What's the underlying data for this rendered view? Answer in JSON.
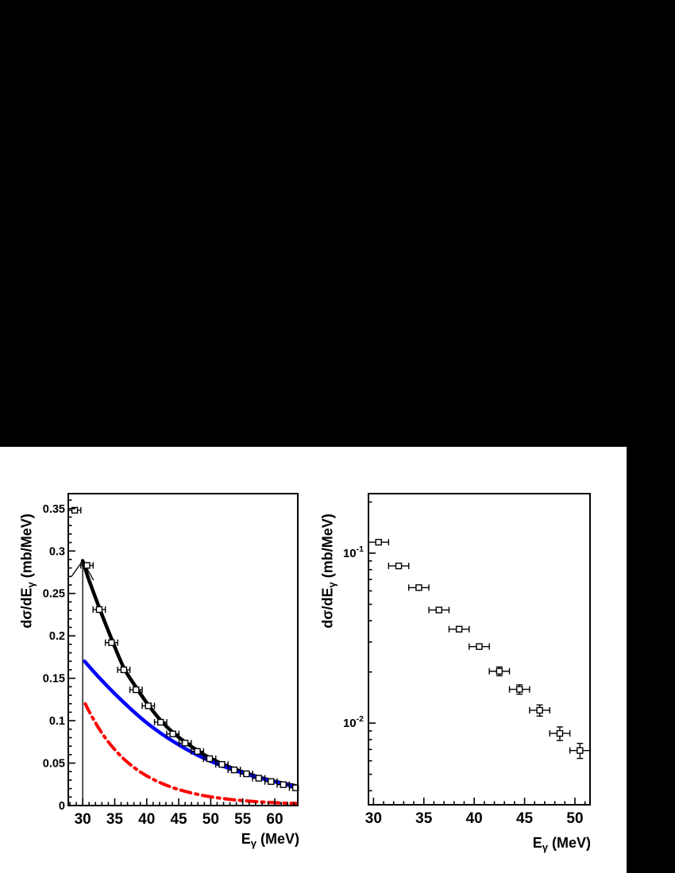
{
  "page": {
    "background": "#000000",
    "figure_background": "#ffffff",
    "accent_colors": {
      "fit_total": "#000000",
      "component_blue": "#0000ff",
      "component_red": "#ff0000"
    }
  },
  "chart_data": [
    {
      "type": "scatter",
      "yscale": "linear",
      "title": "",
      "xlabel": "E_γ (MeV)",
      "ylabel": "dσ/dE_γ (mb/MeV)",
      "xlabel_parts": {
        "main": "E",
        "sub": "γ",
        "unit": " (MeV)"
      },
      "ylabel_parts": {
        "main": "dσ/dE",
        "sub": "γ",
        "unit": " (mb/MeV)"
      },
      "xlim": [
        27.75,
        63.6
      ],
      "ylim": [
        0,
        0.3676
      ],
      "grid": false,
      "legend": "none",
      "xticks": {
        "major": [
          30,
          35,
          40,
          45,
          50,
          55,
          60
        ],
        "labels": [
          "30",
          "35",
          "40",
          "45",
          "50",
          "55",
          "60"
        ],
        "minor_step": 1
      },
      "yticks": {
        "major": [
          0,
          0.05,
          0.1,
          0.15,
          0.2,
          0.25,
          0.3,
          0.35
        ],
        "labels": [
          "0",
          "0.05",
          "0.1",
          "0.15",
          "0.2",
          "0.25",
          "0.3",
          "0.35"
        ],
        "minor_step": 0.01
      },
      "points": {
        "marker": "open-square",
        "x": [
          28.75,
          30.67,
          32.58,
          34.5,
          36.42,
          38.33,
          40.25,
          42.17,
          44.08,
          46.0,
          47.92,
          49.83,
          51.75,
          53.67,
          55.58,
          57.5,
          59.42,
          61.33,
          63.25
        ],
        "y": [
          0.348,
          0.283,
          0.231,
          0.192,
          0.16,
          0.1365,
          0.1175,
          0.0982,
          0.0844,
          0.0736,
          0.0638,
          0.0552,
          0.0485,
          0.042,
          0.0374,
          0.0322,
          0.0283,
          0.0246,
          0.0209
        ],
        "xerr": 0.96,
        "yerr": 0
      },
      "curves": [
        {
          "name": "total-fit-curve",
          "color": "#000000",
          "width": 4.5,
          "dash": null,
          "points": [
            [
              30,
              0.2885
            ],
            [
              31,
              0.2655
            ],
            [
              32.58,
              0.2335
            ],
            [
              34.5,
              0.1965
            ],
            [
              36.42,
              0.1625
            ],
            [
              38.33,
              0.1395
            ],
            [
              40.25,
              0.1185
            ],
            [
              42.17,
              0.1005
            ],
            [
              44.08,
              0.0862
            ],
            [
              46,
              0.0748
            ],
            [
              47.92,
              0.0648
            ],
            [
              49.83,
              0.0562
            ],
            [
              51.75,
              0.0492
            ],
            [
              53.67,
              0.0431
            ],
            [
              55.58,
              0.0381
            ],
            [
              57.5,
              0.0335
            ],
            [
              59.42,
              0.0296
            ],
            [
              61.33,
              0.0262
            ],
            [
              63.25,
              0.0232
            ],
            [
              63.6,
              0.0222
            ]
          ]
        },
        {
          "name": "blue-component-curve",
          "color": "#0000ff",
          "width": 4.5,
          "dash": null,
          "points": [
            [
              30.3,
              0.17
            ],
            [
              32,
              0.1555
            ],
            [
              34,
              0.1395
            ],
            [
              36,
              0.1245
            ],
            [
              38,
              0.1105
            ],
            [
              40,
              0.0975
            ],
            [
              42,
              0.0862
            ],
            [
              44,
              0.0762
            ],
            [
              46,
              0.0672
            ],
            [
              48,
              0.0592
            ],
            [
              50,
              0.0522
            ],
            [
              52,
              0.0462
            ],
            [
              54,
              0.0408
            ],
            [
              56,
              0.036
            ],
            [
              58,
              0.0318
            ],
            [
              60,
              0.0282
            ],
            [
              62,
              0.0243
            ],
            [
              63.6,
              0.0213
            ]
          ]
        },
        {
          "name": "red-component-curve",
          "color": "#ff0000",
          "width": 4,
          "dash": "13 6 3 6",
          "points": [
            [
              30.4,
              0.12
            ],
            [
              31,
              0.111
            ],
            [
              32,
              0.0975
            ],
            [
              33,
              0.0855
            ],
            [
              34,
              0.075
            ],
            [
              35,
              0.066
            ],
            [
              36,
              0.058
            ],
            [
              37,
              0.051
            ],
            [
              38,
              0.045
            ],
            [
              39,
              0.0396
            ],
            [
              40,
              0.035
            ],
            [
              41,
              0.0309
            ],
            [
              42,
              0.0273
            ],
            [
              43,
              0.0241
            ],
            [
              44,
              0.0213
            ],
            [
              45,
              0.0189
            ],
            [
              46,
              0.0167
            ],
            [
              47,
              0.0148
            ],
            [
              48,
              0.0131
            ],
            [
              49,
              0.0116
            ],
            [
              50,
              0.0103
            ],
            [
              51,
              0.0092
            ],
            [
              52,
              0.0082
            ],
            [
              53,
              0.0073
            ],
            [
              54,
              0.0065
            ],
            [
              55,
              0.0058
            ],
            [
              56,
              0.0052
            ],
            [
              57,
              0.0047
            ],
            [
              58,
              0.0042
            ],
            [
              59,
              0.0038
            ],
            [
              60,
              0.0034
            ],
            [
              61,
              0.0031
            ],
            [
              62,
              0.0028
            ],
            [
              63,
              0.0026
            ],
            [
              63.6,
              0.0025
            ]
          ]
        }
      ],
      "arrow": {
        "x": 30,
        "y_from": 0,
        "y_to": 0.2885,
        "barbs": [
          [
            28.3,
            0.2705
          ],
          [
            31.7,
            0.2655
          ]
        ]
      }
    },
    {
      "type": "scatter",
      "yscale": "log",
      "title": "",
      "xlabel": "E_γ (MeV)",
      "ylabel": "dσ/dE_γ (mb/MeV)",
      "xlabel_parts": {
        "main": "E",
        "sub": "γ",
        "unit": " (MeV)"
      },
      "ylabel_parts": {
        "main": "dσ/dE",
        "sub": "γ",
        "unit": " (mb/MeV)"
      },
      "xlim": [
        29.5,
        51.5
      ],
      "ylim": [
        0.00331,
        0.2239
      ],
      "grid": false,
      "legend": "none",
      "xticks": {
        "major": [
          30,
          35,
          40,
          45,
          50
        ],
        "labels": [
          "30",
          "35",
          "40",
          "45",
          "50"
        ],
        "minor_step": 1
      },
      "yticks_log": {
        "label_base": "10",
        "major": [
          {
            "value": 0.1,
            "exp": "-1"
          },
          {
            "value": 0.01,
            "exp": "-2"
          }
        ]
      },
      "points": {
        "marker": "open-square",
        "x": [
          30.5,
          32.5,
          34.5,
          36.5,
          38.5,
          40.5,
          42.5,
          44.5,
          46.5,
          48.5,
          50.5
        ],
        "y": [
          0.116,
          0.0841,
          0.0627,
          0.0463,
          0.0357,
          0.0282,
          0.0202,
          0.0158,
          0.0119,
          0.0087,
          0.0069
        ],
        "xerr": 1.0,
        "yerr": [
          0.0025,
          0.002,
          0.0016,
          0.0013,
          0.0011,
          0.0009,
          0.0012,
          0.001,
          0.0009,
          0.0008,
          0.0007
        ]
      },
      "curves": []
    }
  ]
}
